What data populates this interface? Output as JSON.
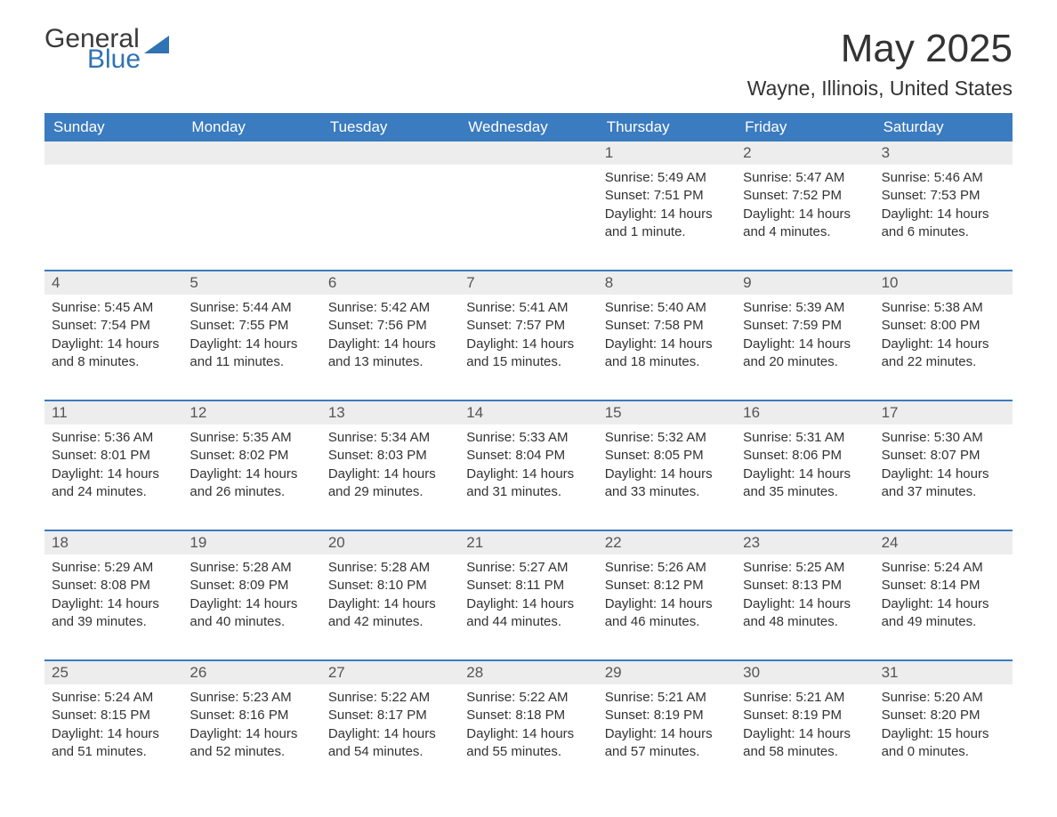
{
  "logo": {
    "text_a": "General",
    "text_b": "Blue",
    "color_general": "#3a3a3a",
    "color_blue": "#2f73b4",
    "sail_color": "#2f73b4"
  },
  "title": {
    "month": "May 2025",
    "location": "Wayne, Illinois, United States"
  },
  "colors": {
    "header_bg": "#3b7bbf",
    "header_fg": "#ffffff",
    "daynum_bg": "#ededed",
    "week_border": "#3b7bbf",
    "body_bg": "#ffffff",
    "text": "#333333"
  },
  "weekdays": [
    "Sunday",
    "Monday",
    "Tuesday",
    "Wednesday",
    "Thursday",
    "Friday",
    "Saturday"
  ],
  "weeks": [
    [
      null,
      null,
      null,
      null,
      {
        "n": "1",
        "sunrise": "5:49 AM",
        "sunset": "7:51 PM",
        "daylight": "14 hours and 1 minute."
      },
      {
        "n": "2",
        "sunrise": "5:47 AM",
        "sunset": "7:52 PM",
        "daylight": "14 hours and 4 minutes."
      },
      {
        "n": "3",
        "sunrise": "5:46 AM",
        "sunset": "7:53 PM",
        "daylight": "14 hours and 6 minutes."
      }
    ],
    [
      {
        "n": "4",
        "sunrise": "5:45 AM",
        "sunset": "7:54 PM",
        "daylight": "14 hours and 8 minutes."
      },
      {
        "n": "5",
        "sunrise": "5:44 AM",
        "sunset": "7:55 PM",
        "daylight": "14 hours and 11 minutes."
      },
      {
        "n": "6",
        "sunrise": "5:42 AM",
        "sunset": "7:56 PM",
        "daylight": "14 hours and 13 minutes."
      },
      {
        "n": "7",
        "sunrise": "5:41 AM",
        "sunset": "7:57 PM",
        "daylight": "14 hours and 15 minutes."
      },
      {
        "n": "8",
        "sunrise": "5:40 AM",
        "sunset": "7:58 PM",
        "daylight": "14 hours and 18 minutes."
      },
      {
        "n": "9",
        "sunrise": "5:39 AM",
        "sunset": "7:59 PM",
        "daylight": "14 hours and 20 minutes."
      },
      {
        "n": "10",
        "sunrise": "5:38 AM",
        "sunset": "8:00 PM",
        "daylight": "14 hours and 22 minutes."
      }
    ],
    [
      {
        "n": "11",
        "sunrise": "5:36 AM",
        "sunset": "8:01 PM",
        "daylight": "14 hours and 24 minutes."
      },
      {
        "n": "12",
        "sunrise": "5:35 AM",
        "sunset": "8:02 PM",
        "daylight": "14 hours and 26 minutes."
      },
      {
        "n": "13",
        "sunrise": "5:34 AM",
        "sunset": "8:03 PM",
        "daylight": "14 hours and 29 minutes."
      },
      {
        "n": "14",
        "sunrise": "5:33 AM",
        "sunset": "8:04 PM",
        "daylight": "14 hours and 31 minutes."
      },
      {
        "n": "15",
        "sunrise": "5:32 AM",
        "sunset": "8:05 PM",
        "daylight": "14 hours and 33 minutes."
      },
      {
        "n": "16",
        "sunrise": "5:31 AM",
        "sunset": "8:06 PM",
        "daylight": "14 hours and 35 minutes."
      },
      {
        "n": "17",
        "sunrise": "5:30 AM",
        "sunset": "8:07 PM",
        "daylight": "14 hours and 37 minutes."
      }
    ],
    [
      {
        "n": "18",
        "sunrise": "5:29 AM",
        "sunset": "8:08 PM",
        "daylight": "14 hours and 39 minutes."
      },
      {
        "n": "19",
        "sunrise": "5:28 AM",
        "sunset": "8:09 PM",
        "daylight": "14 hours and 40 minutes."
      },
      {
        "n": "20",
        "sunrise": "5:28 AM",
        "sunset": "8:10 PM",
        "daylight": "14 hours and 42 minutes."
      },
      {
        "n": "21",
        "sunrise": "5:27 AM",
        "sunset": "8:11 PM",
        "daylight": "14 hours and 44 minutes."
      },
      {
        "n": "22",
        "sunrise": "5:26 AM",
        "sunset": "8:12 PM",
        "daylight": "14 hours and 46 minutes."
      },
      {
        "n": "23",
        "sunrise": "5:25 AM",
        "sunset": "8:13 PM",
        "daylight": "14 hours and 48 minutes."
      },
      {
        "n": "24",
        "sunrise": "5:24 AM",
        "sunset": "8:14 PM",
        "daylight": "14 hours and 49 minutes."
      }
    ],
    [
      {
        "n": "25",
        "sunrise": "5:24 AM",
        "sunset": "8:15 PM",
        "daylight": "14 hours and 51 minutes."
      },
      {
        "n": "26",
        "sunrise": "5:23 AM",
        "sunset": "8:16 PM",
        "daylight": "14 hours and 52 minutes."
      },
      {
        "n": "27",
        "sunrise": "5:22 AM",
        "sunset": "8:17 PM",
        "daylight": "14 hours and 54 minutes."
      },
      {
        "n": "28",
        "sunrise": "5:22 AM",
        "sunset": "8:18 PM",
        "daylight": "14 hours and 55 minutes."
      },
      {
        "n": "29",
        "sunrise": "5:21 AM",
        "sunset": "8:19 PM",
        "daylight": "14 hours and 57 minutes."
      },
      {
        "n": "30",
        "sunrise": "5:21 AM",
        "sunset": "8:19 PM",
        "daylight": "14 hours and 58 minutes."
      },
      {
        "n": "31",
        "sunrise": "5:20 AM",
        "sunset": "8:20 PM",
        "daylight": "15 hours and 0 minutes."
      }
    ]
  ],
  "labels": {
    "sunrise_prefix": "Sunrise: ",
    "sunset_prefix": "Sunset: ",
    "daylight_prefix": "Daylight: "
  }
}
